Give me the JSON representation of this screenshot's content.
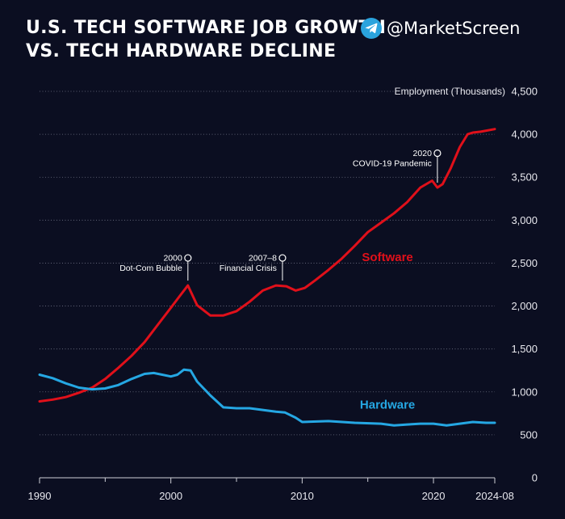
{
  "header": {
    "title_line1": "U.S. TECH SOFTWARE JOB GROWTH",
    "title_line2": "VS. TECH HARDWARE DECLINE"
  },
  "brand": {
    "handle": "@MarketScreen",
    "icon": "telegram-icon",
    "icon_color": "#2aa3dd"
  },
  "colors": {
    "background": "#0b0e21",
    "software": "#e0101a",
    "hardware": "#25a7e3",
    "gridline": "#8a8da0"
  },
  "chart_data": {
    "type": "line",
    "title": "U.S. Tech Software Job Growth vs. Tech Hardware Decline",
    "ylabel": "Employment (Thousands)",
    "xlabel": "",
    "ylim": [
      0,
      4500
    ],
    "xlim": [
      1990,
      2024.67
    ],
    "y_ticks": [
      0,
      500,
      1000,
      1500,
      2000,
      2500,
      3000,
      3500,
      4000,
      4500
    ],
    "y_tick_labels": [
      "0",
      "500",
      "1,000",
      "1,500",
      "2,000",
      "2,500",
      "3,000",
      "3,500",
      "4,000",
      "4,500"
    ],
    "x_ticks": [
      1990,
      2000,
      2010,
      2020,
      2024.67
    ],
    "x_tick_labels": [
      "1990",
      "2000",
      "2010",
      "2020",
      "2024-08"
    ],
    "x_minor_ticks": [
      1995,
      2005,
      2015
    ],
    "grid": "horizontal dotted",
    "series": [
      {
        "name": "Software",
        "color": "#e0101a",
        "x": [
          1990,
          1991,
          1992,
          1993,
          1994,
          1995,
          1996,
          1997,
          1998,
          1999,
          2000,
          2000.6,
          2001.3,
          2002,
          2003,
          2004,
          2005,
          2006,
          2007,
          2008,
          2008.8,
          2009.5,
          2010.2,
          2011,
          2012,
          2013,
          2014,
          2015,
          2016,
          2017,
          2018,
          2019,
          2019.9,
          2020.3,
          2020.7,
          2021.3,
          2022,
          2022.6,
          2023,
          2023.6,
          2024.67
        ],
        "values": [
          890,
          910,
          940,
          990,
          1050,
          1150,
          1280,
          1420,
          1580,
          1780,
          1980,
          2100,
          2240,
          2010,
          1890,
          1890,
          1940,
          2050,
          2180,
          2240,
          2230,
          2180,
          2210,
          2300,
          2420,
          2550,
          2700,
          2860,
          2970,
          3080,
          3210,
          3380,
          3460,
          3380,
          3420,
          3600,
          3850,
          4000,
          4020,
          4030,
          4060
        ]
      },
      {
        "name": "Hardware",
        "color": "#25a7e3",
        "x": [
          1990,
          1991,
          1992,
          1993,
          1994,
          1995,
          1996,
          1997,
          1998,
          1998.7,
          2000,
          2000.5,
          2001,
          2001.5,
          2002,
          2003,
          2004,
          2005,
          2006,
          2007,
          2008,
          2008.7,
          2009.5,
          2010,
          2012,
          2014,
          2016,
          2017,
          2018,
          2019,
          2020,
          2021,
          2022,
          2023,
          2024,
          2024.67
        ],
        "values": [
          1200,
          1160,
          1100,
          1050,
          1030,
          1040,
          1080,
          1150,
          1210,
          1220,
          1180,
          1200,
          1260,
          1250,
          1120,
          960,
          820,
          810,
          810,
          790,
          770,
          760,
          700,
          650,
          660,
          640,
          630,
          610,
          620,
          630,
          630,
          610,
          630,
          650,
          640,
          640
        ]
      }
    ],
    "series_labels": [
      {
        "text": "Software",
        "series": "Software",
        "x": 2016.5,
        "y": 2570
      },
      {
        "text": "Hardware",
        "series": "Hardware",
        "x": 2016.5,
        "y": 850
      }
    ],
    "annotations": [
      {
        "year_label": "2000",
        "text": "Dot-Com Bubble",
        "x": 2001.3,
        "y": 2240,
        "marker_y": 2560
      },
      {
        "year_label": "2007–8",
        "text": "Financial Crisis",
        "x": 2008.5,
        "y": 2240,
        "marker_y": 2560
      },
      {
        "year_label": "2020",
        "text": "COVID-19 Pandemic",
        "x": 2020.3,
        "y": 3380,
        "marker_y": 3780
      }
    ]
  }
}
